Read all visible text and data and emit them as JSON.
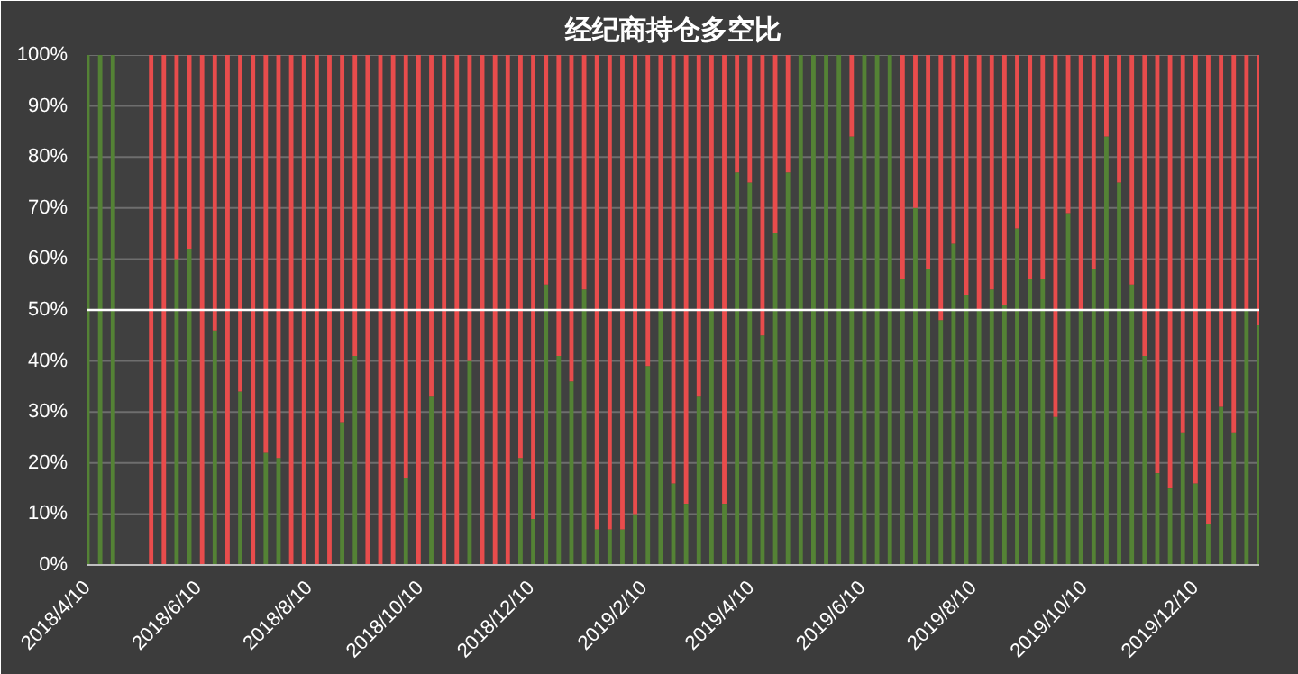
{
  "chart_data": {
    "type": "bar",
    "title": "经纪商持仓多空比",
    "stacked": true,
    "x": [
      "2018-04-10",
      "2018-04-17",
      "2018-04-24",
      "2018-05-01",
      "2018-05-08",
      "2018-05-15",
      "2018-05-22",
      "2018-05-29",
      "2018-06-05",
      "2018-06-12",
      "2018-06-19",
      "2018-06-26",
      "2018-07-03",
      "2018-07-10",
      "2018-07-17",
      "2018-07-24",
      "2018-07-31",
      "2018-08-07",
      "2018-08-14",
      "2018-08-21",
      "2018-08-28",
      "2018-09-04",
      "2018-09-11",
      "2018-09-18",
      "2018-09-25",
      "2018-10-02",
      "2018-10-09",
      "2018-10-16",
      "2018-10-23",
      "2018-10-30",
      "2018-11-06",
      "2018-11-13",
      "2018-11-20",
      "2018-11-27",
      "2018-12-04",
      "2018-12-11",
      "2018-12-18",
      "2018-12-25",
      "2019-01-01",
      "2019-01-08",
      "2019-01-15",
      "2019-01-22",
      "2019-01-29",
      "2019-02-05",
      "2019-02-12",
      "2019-02-19",
      "2019-02-26",
      "2019-03-05",
      "2019-03-12",
      "2019-03-19",
      "2019-03-26",
      "2019-04-02",
      "2019-04-09",
      "2019-04-16",
      "2019-04-23",
      "2019-04-30",
      "2019-05-07",
      "2019-05-14",
      "2019-05-21",
      "2019-05-28",
      "2019-06-04",
      "2019-06-11",
      "2019-06-18",
      "2019-06-25",
      "2019-07-02",
      "2019-07-09",
      "2019-07-16",
      "2019-07-23",
      "2019-07-30",
      "2019-08-06",
      "2019-08-13",
      "2019-08-20",
      "2019-08-27",
      "2019-09-03",
      "2019-09-10",
      "2019-09-17",
      "2019-09-24",
      "2019-10-01",
      "2019-10-08",
      "2019-10-15",
      "2019-10-22",
      "2019-10-29",
      "2019-11-05",
      "2019-11-12",
      "2019-11-19",
      "2019-11-26",
      "2019-12-03",
      "2019-12-10",
      "2019-12-17",
      "2019-12-24",
      "2019-12-31",
      "2020-01-07",
      "2020-01-14"
    ],
    "series": [
      {
        "color": "#548235",
        "values": [
          100,
          100,
          100,
          null,
          null,
          0,
          0,
          60,
          62,
          0,
          46,
          0,
          34,
          0,
          22,
          21,
          0,
          0,
          0,
          0,
          28,
          41,
          0,
          0,
          0,
          17,
          0,
          33,
          0,
          0,
          40,
          0,
          0,
          0,
          21,
          9,
          55,
          41,
          36,
          54,
          7,
          7,
          7,
          10,
          39,
          50,
          16,
          12,
          33,
          50,
          12,
          77,
          75,
          45,
          65,
          77,
          100,
          100,
          100,
          100,
          84,
          100,
          100,
          100,
          56,
          70,
          58,
          48,
          63,
          53,
          50,
          54,
          51,
          66,
          56,
          56,
          29,
          69,
          50,
          58,
          84,
          75,
          55,
          41,
          18,
          15,
          26,
          16,
          8,
          31,
          26,
          50,
          47
        ]
      },
      {
        "color": "#e84c4c",
        "values": [
          0,
          0,
          0,
          null,
          null,
          100,
          100,
          40,
          38,
          100,
          54,
          100,
          66,
          100,
          78,
          79,
          100,
          100,
          100,
          100,
          72,
          59,
          100,
          100,
          100,
          83,
          100,
          67,
          100,
          100,
          60,
          100,
          100,
          100,
          79,
          91,
          45,
          59,
          64,
          46,
          93,
          93,
          93,
          90,
          61,
          50,
          84,
          88,
          67,
          50,
          88,
          23,
          25,
          55,
          35,
          23,
          0,
          0,
          0,
          0,
          16,
          0,
          0,
          0,
          44,
          30,
          42,
          52,
          37,
          47,
          50,
          46,
          49,
          34,
          44,
          44,
          71,
          31,
          50,
          42,
          16,
          25,
          45,
          59,
          82,
          85,
          74,
          84,
          92,
          69,
          74,
          50,
          53
        ]
      }
    ],
    "xlim": [
      "2018-04-10",
      "2020-01-14"
    ],
    "xticks": [
      {
        "value": "2018-04-10",
        "label": "2018/4/10"
      },
      {
        "value": "2018-06-10",
        "label": "2018/6/10"
      },
      {
        "value": "2018-08-10",
        "label": "2018/8/10"
      },
      {
        "value": "2018-10-10",
        "label": "2018/10/10"
      },
      {
        "value": "2018-12-10",
        "label": "2018/12/10"
      },
      {
        "value": "2019-02-10",
        "label": "2019/2/10"
      },
      {
        "value": "2019-04-10",
        "label": "2019/4/10"
      },
      {
        "value": "2019-06-10",
        "label": "2019/6/10"
      },
      {
        "value": "2019-08-10",
        "label": "2019/8/10"
      },
      {
        "value": "2019-10-10",
        "label": "2019/10/10"
      },
      {
        "value": "2019-12-10",
        "label": "2019/12/10"
      }
    ],
    "ylim": [
      0,
      100
    ],
    "yticks": [
      {
        "value": 0,
        "label": "0%"
      },
      {
        "value": 10,
        "label": "10%"
      },
      {
        "value": 20,
        "label": "20%"
      },
      {
        "value": 30,
        "label": "30%"
      },
      {
        "value": 40,
        "label": "40%"
      },
      {
        "value": 50,
        "label": "50%"
      },
      {
        "value": 60,
        "label": "60%"
      },
      {
        "value": 70,
        "label": "70%"
      },
      {
        "value": 80,
        "label": "80%"
      },
      {
        "value": 90,
        "label": "90%"
      },
      {
        "value": 100,
        "label": "100%"
      }
    ],
    "grid": "y",
    "ref_lines": [
      {
        "axis": "y",
        "value": 50,
        "color": "#ffffff"
      }
    ]
  }
}
